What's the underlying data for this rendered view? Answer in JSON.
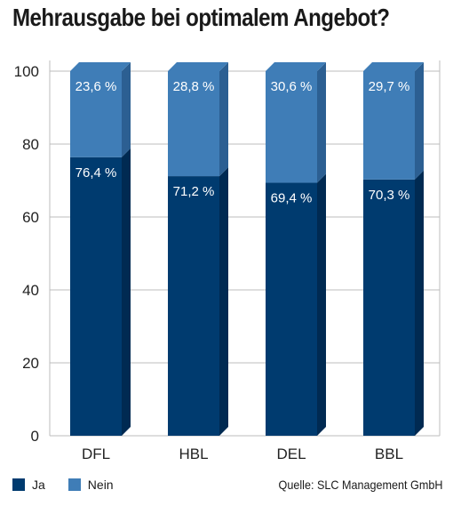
{
  "title": "Mehrausgabe bei optimalem Angebot?",
  "source": "Quelle: SLC Management GmbH",
  "colors": {
    "ja": "#003b6f",
    "ja_side": "#002a52",
    "nein": "#3f7db7",
    "nein_side": "#2c5f92",
    "grid": "#bcbcbc"
  },
  "legend": [
    {
      "label": "Ja",
      "color": "#003b6f"
    },
    {
      "label": "Nein",
      "color": "#3f7db7"
    }
  ],
  "chart_data": {
    "type": "bar",
    "stacked": true,
    "categories": [
      "DFL",
      "HBL",
      "DEL",
      "BBL"
    ],
    "series": [
      {
        "name": "Ja",
        "values": [
          76.4,
          71.2,
          69.4,
          70.3
        ],
        "labels": [
          "76,4 %",
          "71,2 %",
          "69,4 %",
          "70,3 %"
        ]
      },
      {
        "name": "Nein",
        "values": [
          23.6,
          28.8,
          30.6,
          29.7
        ],
        "labels": [
          "23,6 %",
          "28,8 %",
          "30,6 %",
          "29,7 %"
        ]
      }
    ],
    "yticks": [
      0,
      20,
      40,
      60,
      80,
      100
    ],
    "ylim": [
      0,
      100
    ],
    "grid": true
  }
}
